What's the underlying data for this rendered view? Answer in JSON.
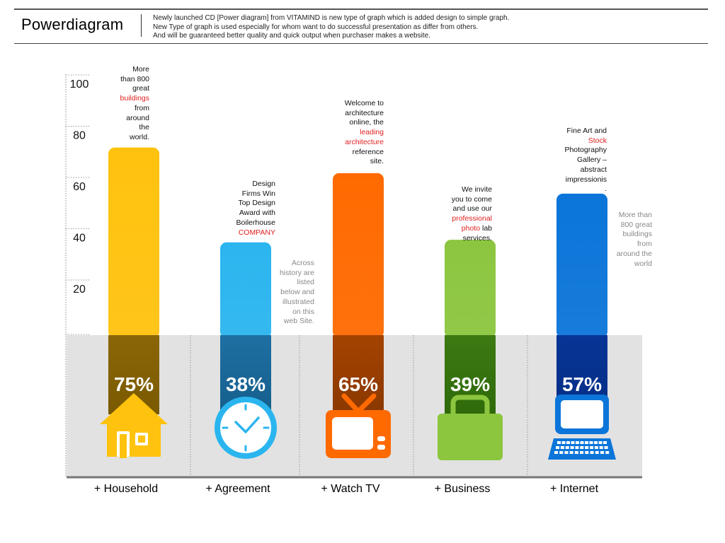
{
  "header": {
    "title": "Powerdiagram",
    "lines": [
      "Newly launched CD [Power diagram] from VITAMIND is new type of graph which is added design to simple graph.",
      "New Type of graph is used especially for whom want to do successful presentation as differ from others.",
      "And will be guaranteed better quality and quick output when purchaser makes a website."
    ]
  },
  "colors": {
    "household": "#ffc20e",
    "agreement": "#2bb5ef",
    "watchtv": "#ff6a00",
    "business": "#8cc63f",
    "internet": "#0b75d9",
    "panel": "#e2e2e2",
    "highlight": "#e02020"
  },
  "chart_data": {
    "type": "bar",
    "categories": [
      "+ Household",
      "+ Agreement",
      "+ Watch TV",
      "+ Business",
      "+ Internet"
    ],
    "values": [
      75,
      38,
      65,
      39,
      57
    ],
    "value_labels": [
      "75%",
      "38%",
      "65%",
      "39%",
      "57%"
    ],
    "icons": [
      "house-icon",
      "clock-icon",
      "tv-icon",
      "briefcase-icon",
      "laptop-icon"
    ],
    "yticks": [
      20,
      40,
      60,
      80,
      100
    ],
    "ylim": [
      0,
      100
    ],
    "title": "",
    "xlabel": "",
    "ylabel": ""
  },
  "notes": [
    {
      "lines": [
        "More",
        "than 800",
        "great",
        "buildings",
        "from",
        "around",
        "the",
        "world."
      ],
      "highlight": [
        3
      ],
      "grey": false
    },
    {
      "lines": [
        "Design",
        "Firms Win",
        "Top Design",
        "Award with",
        "Boilerhouse",
        "COMPANY"
      ],
      "highlight": [
        5
      ],
      "grey": false
    },
    {
      "lines": [
        "Across",
        "history are",
        "listed",
        "below and",
        "illustrated",
        "on this",
        "web Site."
      ],
      "highlight": [],
      "grey": true
    },
    {
      "lines": [
        "Welcome to",
        "architecture",
        "online, the",
        "leading",
        "architecture",
        "reference",
        "site."
      ],
      "highlight": [
        3,
        4
      ],
      "grey": false
    },
    {
      "lines": [
        "We invite",
        "you to come",
        "and use our",
        "professional",
        "photo lab",
        "services."
      ],
      "highlight": [
        3,
        4
      ],
      "grey": false,
      "partial": {
        "4": "photo"
      }
    },
    {
      "lines": [
        "Fine Art and",
        "Stock",
        "Photography",
        "Gallery –",
        "abstract",
        "impressionis",
        "."
      ],
      "highlight": [
        1
      ],
      "grey": false
    },
    {
      "lines": [
        "More than",
        "800 great",
        "buildings",
        "from",
        "around the",
        "world"
      ],
      "highlight": [],
      "grey": true
    }
  ]
}
